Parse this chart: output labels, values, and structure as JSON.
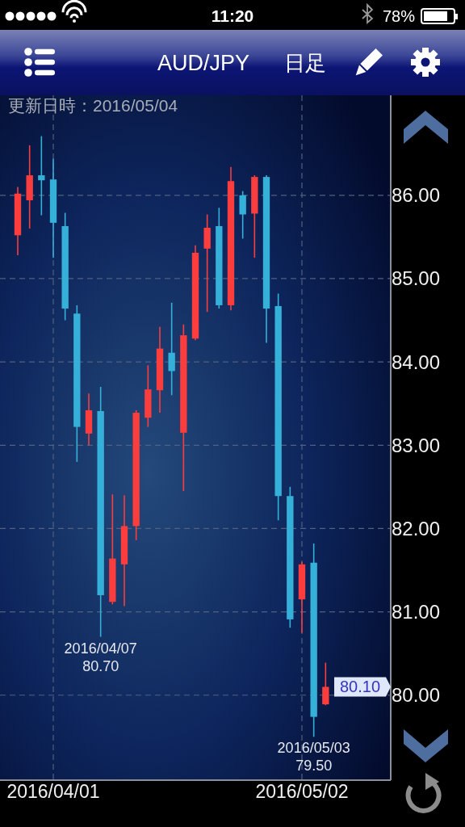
{
  "chart_data": {
    "type": "candlestick",
    "title": "AUD/JPY",
    "subtitle": "日足",
    "categories": [
      null,
      null,
      null,
      "2016/04/01",
      null,
      null,
      null,
      null,
      null,
      null,
      null,
      null,
      null,
      null,
      null,
      null,
      null,
      null,
      null,
      null,
      null,
      null,
      null,
      null,
      "2016/05/02",
      null,
      null
    ],
    "ohlc": [
      [
        85.52,
        86.1,
        85.28,
        86.02
      ],
      [
        85.94,
        86.6,
        85.6,
        86.24
      ],
      [
        86.24,
        86.71,
        85.76,
        86.18
      ],
      [
        86.19,
        86.44,
        85.25,
        85.67
      ],
      [
        85.63,
        85.79,
        84.5,
        84.64
      ],
      [
        84.58,
        84.68,
        82.8,
        83.22
      ],
      [
        83.14,
        83.62,
        83.0,
        83.42
      ],
      [
        83.41,
        83.7,
        80.7,
        81.2
      ],
      [
        81.12,
        82.41,
        81.09,
        81.64
      ],
      [
        81.57,
        82.4,
        81.07,
        82.03
      ],
      [
        82.03,
        83.42,
        81.86,
        83.39
      ],
      [
        83.33,
        83.96,
        83.22,
        83.67
      ],
      [
        83.66,
        84.42,
        83.39,
        84.16
      ],
      [
        84.11,
        84.71,
        83.6,
        83.89
      ],
      [
        83.15,
        84.45,
        82.45,
        84.32
      ],
      [
        84.28,
        85.4,
        84.26,
        85.31
      ],
      [
        85.36,
        85.77,
        84.6,
        85.61
      ],
      [
        85.63,
        85.85,
        84.64,
        84.68
      ],
      [
        84.68,
        86.34,
        84.62,
        86.17
      ],
      [
        86.0,
        86.05,
        85.48,
        85.77
      ],
      [
        85.78,
        86.24,
        85.25,
        86.22
      ],
      [
        86.22,
        86.24,
        84.23,
        84.64
      ],
      [
        84.67,
        84.82,
        82.1,
        82.39
      ],
      [
        82.39,
        82.5,
        80.81,
        80.91
      ],
      [
        81.15,
        81.6,
        80.75,
        81.57
      ],
      [
        81.59,
        81.82,
        79.5,
        79.74
      ],
      [
        79.89,
        80.39,
        79.88,
        80.1
      ]
    ],
    "colors": [
      "#fb3d3d",
      "#fb3d3d",
      "#35b0d9",
      "#35b0d9",
      "#35b0d9",
      "#35b0d9",
      "#fb3d3d",
      "#35b0d9",
      "#fb3d3d",
      "#fb3d3d",
      "#fb3d3d",
      "#fb3d3d",
      "#fb3d3d",
      "#35b0d9",
      "#fb3d3d",
      "#fb3d3d",
      "#fb3d3d",
      "#35b0d9",
      "#fb3d3d",
      "#35b0d9",
      "#fb3d3d",
      "#35b0d9",
      "#35b0d9",
      "#35b0d9",
      "#fb3d3d",
      "#35b0d9",
      "#fb3d3d"
    ],
    "ylim": [
      78.98,
      87.2
    ],
    "yticks": [
      {
        "value": 80,
        "label": "80.00"
      },
      {
        "value": 81,
        "label": "81.00"
      },
      {
        "value": 82,
        "label": "82.00"
      },
      {
        "value": 83,
        "label": "83.00"
      },
      {
        "value": 84,
        "label": "84.00"
      },
      {
        "value": 85,
        "label": "85.00"
      },
      {
        "value": 86,
        "label": "86.00"
      }
    ],
    "grid": true,
    "annotations": [
      "更新日時：2016/05/04",
      {
        "text": "2016/04/07 80.70",
        "y": 80.7
      },
      {
        "text": "2016/05/03 79.50",
        "y": 79.5
      },
      "80.10",
      "11:20",
      "78%"
    ]
  }
}
